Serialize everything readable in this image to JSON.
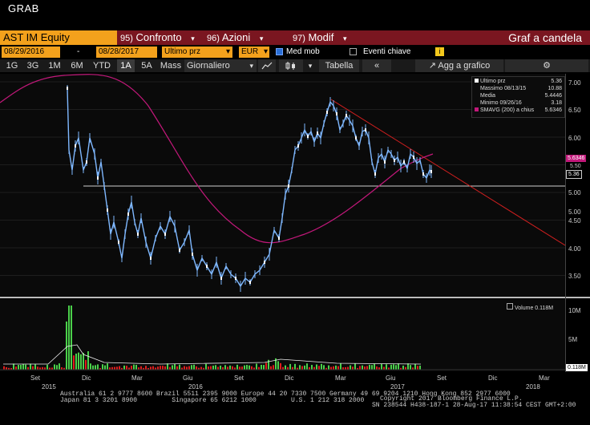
{
  "window": {
    "title": "GRAB"
  },
  "cmdbar": {
    "ticker": "AST IM Equity",
    "items": [
      {
        "num": "95)",
        "label": "Confronto"
      },
      {
        "num": "96)",
        "label": "Azioni"
      },
      {
        "num": "97)",
        "label": "Modif"
      }
    ],
    "title": "Graf a candela"
  },
  "settings": {
    "start_date": "08/29/2016",
    "sep": "-",
    "end_date": "08/28/2017",
    "field": "Ultimo prz",
    "currency": "EUR",
    "med_mob": "Med mob",
    "eventi": "Eventi chiave",
    "info": "i"
  },
  "toolbar": {
    "periods": [
      "1G",
      "3G",
      "1M",
      "6M",
      "YTD",
      "1A",
      "5A",
      "Mass"
    ],
    "selected_period": "1A",
    "frequency": "Giornaliero",
    "tabella": "Tabella",
    "agg": "Agg a grafico"
  },
  "legend": {
    "rows": [
      {
        "label": "Ultimo prz",
        "value": "5.36"
      },
      {
        "label": "Massimo 08/13/15",
        "value": "10.88"
      },
      {
        "label": "Media",
        "value": "5.4446"
      },
      {
        "label": "Minimo 09/26/16",
        "value": "3.18"
      },
      {
        "label": "SMAVG (200) a chius",
        "value": "5.6346"
      }
    ]
  },
  "price_axis": [
    "7.00",
    "6.50",
    "6.00",
    "5.50",
    "5.00",
    "4.50",
    "4.00",
    "3.50"
  ],
  "price_tags": {
    "sma": "5.6346",
    "s550": "5.50",
    "last": "5.36"
  },
  "volume_axis": [
    "10M",
    "5M"
  ],
  "volume_tag": "0.118M",
  "volume_legend": "Volume 0.118M",
  "x_axis": {
    "months": [
      "Set",
      "Dic",
      "Mar",
      "Giu",
      "Set",
      "Dic",
      "Mar",
      "Giu",
      "Set",
      "Dic",
      "Mar"
    ],
    "years": [
      "2015",
      "2016",
      "2017",
      "2018"
    ]
  },
  "colors": {
    "accent": "#f3a11c",
    "bar": "#7a1620",
    "price": "#7fb8ff",
    "sma": "#c2187a",
    "trend": "#d01f1f",
    "up": "#4ad04a",
    "down": "#e01c1c"
  },
  "footer": {
    "line1": "Australia 61 2 9777 8600 Brazil 5511 2395 9000 Europe 44 20 7330 7500 Germany 49 69 9204 1210 Hong Kong 852 2977 6000",
    "line2": "Japan 81 3 3201 8900         Singapore 65 6212 1000         U.S. 1 212 318 2000",
    "copyright": "Copyright 2017 Bloomberg Finance L.P.",
    "sn": "SN 238544 H438-187-1 28-Aug-17 11:38:54 CEST GMT+2:00"
  }
}
